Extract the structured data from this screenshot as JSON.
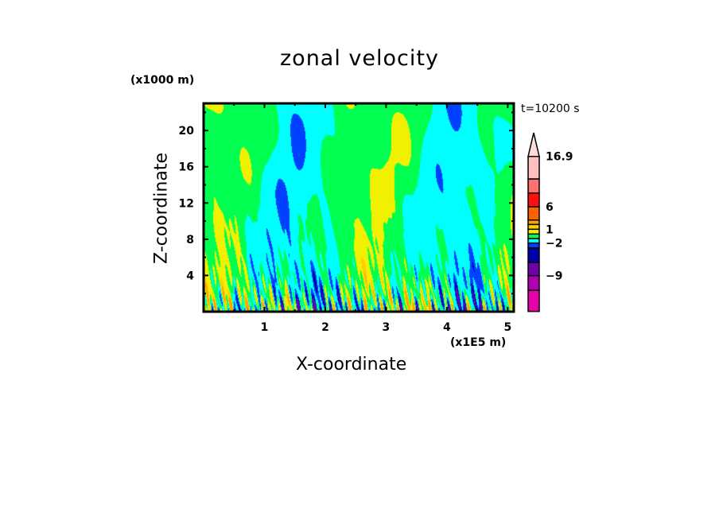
{
  "chart_data": {
    "type": "heatmap",
    "title": "zonal velocity",
    "xlabel": "X-coordinate",
    "ylabel": "Z-coordinate",
    "x_unit": "(x1E5 m)",
    "y_unit": "(x1000 m)",
    "annotation": "t=10200 s",
    "xlim": [
      0,
      5.1
    ],
    "ylim": [
      0,
      23
    ],
    "xticks": [
      1,
      2,
      3,
      4,
      5
    ],
    "yticks": [
      4,
      8,
      12,
      16,
      20
    ],
    "colorbar": {
      "levels": [
        -12,
        -9,
        -6,
        -3,
        -2,
        -1,
        0,
        1,
        2,
        3,
        6,
        9,
        12,
        16.9
      ],
      "labels": [
        {
          "value": 16.9,
          "text": "16.9",
          "index": 13
        },
        {
          "value": 6,
          "text": "6",
          "index": 10
        },
        {
          "value": 1,
          "text": "1",
          "index": 7
        },
        {
          "value": -2,
          "text": "−2",
          "index": 4
        },
        {
          "value": -9,
          "text": "−9",
          "index": 1
        }
      ],
      "colors": [
        "#e800a8",
        "#b000b0",
        "#7000a8",
        "#0000a8",
        "#0040ff",
        "#00ffff",
        "#00ff50",
        "#f0f000",
        "#ffd000",
        "#ffa000",
        "#ff6000",
        "#ff1010",
        "#ff7070",
        "#ffc0c0"
      ],
      "overflow_color": "#ffdcdc"
    },
    "description_values": "dominant field between -1 and 1 (green/yellow), stronger +/- values near the surface (z < 8)"
  }
}
